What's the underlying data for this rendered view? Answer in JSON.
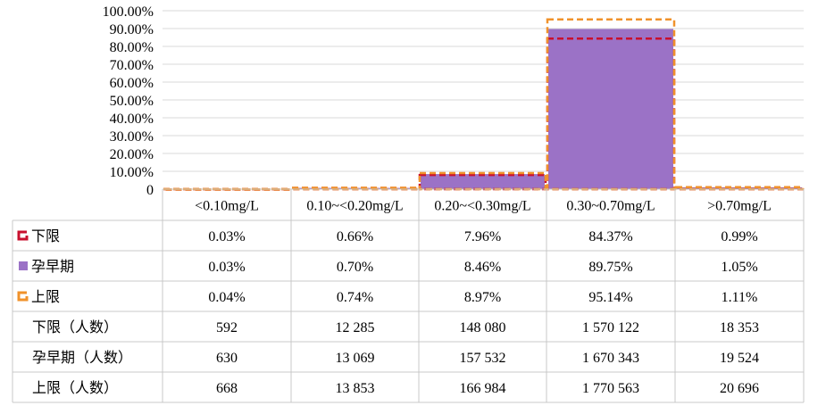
{
  "chart_data": {
    "type": "bar",
    "categories": [
      "<0.10mg/L",
      "0.10~<0.20mg/L",
      "0.20~<0.30mg/L",
      "0.30~0.70mg/L",
      ">0.70mg/L"
    ],
    "y_ticks": [
      "100.00%",
      "90.00%",
      "80.00%",
      "70.00%",
      "60.00%",
      "50.00%",
      "40.00%",
      "30.00%",
      "20.00%",
      "10.00%",
      "0"
    ],
    "ylim": [
      0,
      100
    ],
    "grid": true,
    "series": [
      {
        "name": "下限",
        "style": "dashed-outline",
        "color": "#c8102e",
        "values": [
          0.03,
          0.66,
          7.96,
          84.37,
          0.99
        ],
        "labels": [
          "0.03%",
          "0.66%",
          "7.96%",
          "84.37%",
          "0.99%"
        ]
      },
      {
        "name": "孕早期",
        "style": "filled-bar",
        "color": "#9b72c6",
        "values": [
          0.03,
          0.7,
          8.46,
          89.75,
          1.05
        ],
        "labels": [
          "0.03%",
          "0.70%",
          "8.46%",
          "89.75%",
          "1.05%"
        ]
      },
      {
        "name": "上限",
        "style": "dashed-outline",
        "color": "#f0922b",
        "values": [
          0.04,
          0.74,
          8.97,
          95.14,
          1.11
        ],
        "labels": [
          "0.04%",
          "0.74%",
          "8.97%",
          "95.14%",
          "1.11%"
        ]
      }
    ],
    "count_rows": [
      {
        "label": "下限（人数）",
        "values": [
          "592",
          "12 285",
          "148 080",
          "1 570 122",
          "18 353"
        ]
      },
      {
        "label": "孕早期（人数）",
        "values": [
          "630",
          "13 069",
          "157 532",
          "1 670 343",
          "19 524"
        ]
      },
      {
        "label": "上限（人数）",
        "values": [
          "668",
          "13 853",
          "166 984",
          "1 770 563",
          "20 696"
        ]
      }
    ]
  }
}
